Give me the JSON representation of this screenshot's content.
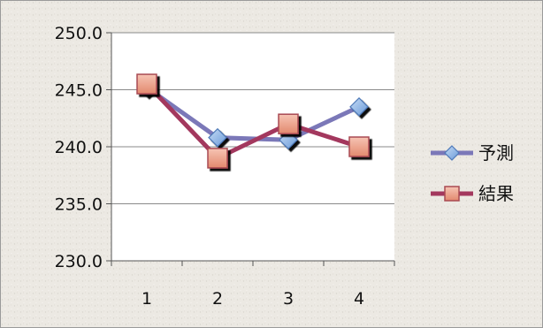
{
  "chart_data": {
    "type": "line",
    "title": "",
    "xlabel": "",
    "ylabel": "",
    "categories": [
      "1",
      "2",
      "3",
      "4"
    ],
    "ylim": [
      230.0,
      250.0
    ],
    "yticks": [
      "230.0",
      "235.0",
      "240.0",
      "245.0",
      "250.0"
    ],
    "grid": true,
    "legend_position": "right",
    "series": [
      {
        "name": "予測",
        "values": [
          245.2,
          240.8,
          240.6,
          243.5
        ],
        "color": "#7b78b8",
        "marker": "diamond"
      },
      {
        "name": "結果",
        "values": [
          245.5,
          239.0,
          242.0,
          240.0
        ],
        "color": "#a3385e",
        "marker": "square"
      }
    ]
  }
}
